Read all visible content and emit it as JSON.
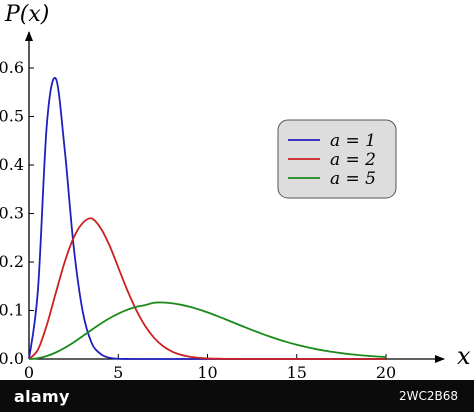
{
  "chart_data": {
    "type": "line",
    "title": "",
    "ylabel": "P(x)",
    "xlabel": "x",
    "xlim": [
      0,
      23
    ],
    "ylim": [
      0,
      0.65
    ],
    "xticks": [
      0,
      5,
      10,
      15,
      20
    ],
    "xtick_labels": [
      "0",
      "5",
      "10",
      "15",
      "20"
    ],
    "yticks": [
      0,
      0.1,
      0.2,
      0.3,
      0.4,
      0.5,
      0.6
    ],
    "ytick_labels": [
      "0.0",
      "0.1",
      "0.2",
      "0.3",
      "0.4",
      "0.5",
      "0.6"
    ],
    "grid": false,
    "legend_position": "top-right",
    "x": [
      0,
      0.5,
      1,
      1.5,
      2,
      2.5,
      3,
      3.5,
      4,
      4.5,
      5,
      5.5,
      6,
      6.5,
      7,
      7.5,
      8,
      8.5,
      9,
      9.5,
      10,
      10.5,
      11,
      11.5,
      12,
      12.5,
      13,
      13.5,
      14,
      14.5,
      15,
      15.5,
      16,
      16.5,
      17,
      17.5,
      18,
      18.5,
      19,
      19.5,
      20
    ],
    "series": [
      {
        "name": "a = 1",
        "color": "#1f1fbf",
        "values": [
          0,
          0.1416,
          0.4839,
          0.5783,
          0.4319,
          0.2328,
          0.0997,
          0.0339,
          0.0108,
          0.0025,
          0.0005,
          0.0001,
          0,
          0,
          0,
          0,
          0,
          0,
          0,
          0,
          0,
          0,
          0,
          0,
          0,
          0,
          0,
          0,
          0,
          0,
          0,
          0,
          0,
          0,
          0,
          0,
          0,
          0,
          0,
          0,
          0
        ]
      },
      {
        "name": "a = 2",
        "color": "#cc1f1f",
        "values": [
          0,
          0.0192,
          0.0704,
          0.136,
          0.2,
          0.25,
          0.28,
          0.29,
          0.2707,
          0.235,
          0.1888,
          0.1425,
          0.1016,
          0.0686,
          0.044,
          0.0268,
          0.0156,
          0.0087,
          0.0046,
          0.0024,
          0.0012,
          0.0006,
          0.0003,
          0.0001,
          0,
          0,
          0,
          0,
          0,
          0,
          0,
          0,
          0,
          0,
          0,
          0,
          0,
          0,
          0,
          0,
          0
        ]
      },
      {
        "name": "a = 5",
        "color": "#1a8a1a",
        "values": [
          0,
          0.0016,
          0.0062,
          0.0134,
          0.023,
          0.0344,
          0.047,
          0.0599,
          0.0724,
          0.0838,
          0.0934,
          0.1014,
          0.1075,
          0.1112,
          0.116,
          0.1165,
          0.115,
          0.112,
          0.1078,
          0.1024,
          0.0962,
          0.0893,
          0.082,
          0.0745,
          0.067,
          0.0597,
          0.0527,
          0.0461,
          0.04,
          0.0344,
          0.0294,
          0.025,
          0.021,
          0.0175,
          0.0146,
          0.012,
          0.0098,
          0.008,
          0.0064,
          0.0051,
          0.004
        ]
      }
    ]
  },
  "legend": {
    "entries": [
      "a = 1",
      "a = 2",
      "a = 5"
    ],
    "background": "#dddddd"
  },
  "footer": {
    "logo": "alamy",
    "code": "2WC2B68"
  }
}
